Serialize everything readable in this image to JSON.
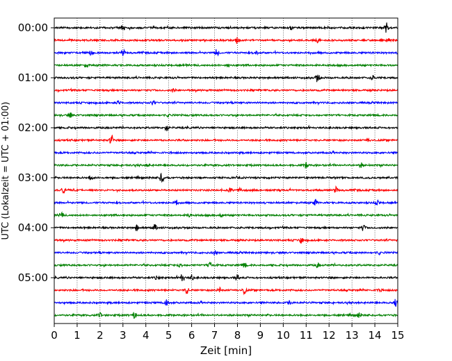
{
  "chart_data": {
    "type": "line",
    "title": "",
    "xlabel": "Zeit  [min]",
    "ylabel": "UTC (Lokalzeit = UTC + 01:00)",
    "xlim": [
      0,
      15
    ],
    "x_ticks": [
      "0",
      "1",
      "2",
      "3",
      "4",
      "5",
      "6",
      "7",
      "8",
      "9",
      "10",
      "11",
      "12",
      "13",
      "14",
      "15"
    ],
    "y_ticks": [
      "00:00",
      "01:00",
      "02:00",
      "03:00",
      "04:00",
      "05:00"
    ],
    "grid": "vertical dotted at each minute",
    "trace_colors_cycle": [
      "#000000",
      "#ff0000",
      "#0000ff",
      "#008000"
    ],
    "trace_interval_minutes": 15,
    "traces": [
      {
        "start": "00:00",
        "color": "#000000",
        "events": [
          {
            "t": 3.0,
            "a": 4
          },
          {
            "t": 10.3,
            "a": 4
          },
          {
            "t": 14.5,
            "a": 7
          }
        ]
      },
      {
        "start": "00:15",
        "color": "#ff0000",
        "events": [
          {
            "t": 8.0,
            "a": 5
          },
          {
            "t": 11.5,
            "a": 3
          },
          {
            "t": 14.6,
            "a": 3
          }
        ]
      },
      {
        "start": "00:30",
        "color": "#0000ff",
        "events": [
          {
            "t": 1.6,
            "a": 3
          },
          {
            "t": 3.0,
            "a": 4
          },
          {
            "t": 7.1,
            "a": 5
          },
          {
            "t": 8.8,
            "a": 3
          }
        ]
      },
      {
        "start": "00:45",
        "color": "#008000",
        "events": [
          {
            "t": 1.4,
            "a": 3
          },
          {
            "t": 7.6,
            "a": 2
          }
        ]
      },
      {
        "start": "01:00",
        "color": "#000000",
        "events": [
          {
            "t": 11.5,
            "a": 6
          },
          {
            "t": 13.9,
            "a": 3
          }
        ]
      },
      {
        "start": "01:15",
        "color": "#ff0000",
        "events": [
          {
            "t": 5.2,
            "a": 2
          }
        ]
      },
      {
        "start": "01:30",
        "color": "#0000ff",
        "events": [
          {
            "t": 2.8,
            "a": 3
          },
          {
            "t": 4.3,
            "a": 3
          }
        ]
      },
      {
        "start": "01:45",
        "color": "#008000",
        "events": [
          {
            "t": 0.7,
            "a": 3
          },
          {
            "t": 5.0,
            "a": 2
          }
        ]
      },
      {
        "start": "02:00",
        "color": "#000000",
        "events": [
          {
            "t": 4.9,
            "a": 4
          }
        ]
      },
      {
        "start": "02:15",
        "color": "#ff0000",
        "events": [
          {
            "t": 2.5,
            "a": 7
          },
          {
            "t": 13.7,
            "a": 2
          }
        ]
      },
      {
        "start": "02:30",
        "color": "#0000ff",
        "events": []
      },
      {
        "start": "02:45",
        "color": "#008000",
        "events": [
          {
            "t": 4.1,
            "a": 2
          },
          {
            "t": 11.0,
            "a": 4
          },
          {
            "t": 13.4,
            "a": 3
          }
        ]
      },
      {
        "start": "03:00",
        "color": "#000000",
        "events": [
          {
            "t": 1.6,
            "a": 3
          },
          {
            "t": 4.7,
            "a": 7
          }
        ]
      },
      {
        "start": "03:15",
        "color": "#ff0000",
        "events": [
          {
            "t": 0.4,
            "a": 5
          },
          {
            "t": 7.7,
            "a": 3
          },
          {
            "t": 8.1,
            "a": 3
          },
          {
            "t": 12.3,
            "a": 4
          }
        ]
      },
      {
        "start": "03:30",
        "color": "#0000ff",
        "events": [
          {
            "t": 5.3,
            "a": 5
          },
          {
            "t": 11.4,
            "a": 4
          },
          {
            "t": 14.1,
            "a": 3
          }
        ]
      },
      {
        "start": "03:45",
        "color": "#008000",
        "events": [
          {
            "t": 0.3,
            "a": 4
          },
          {
            "t": 5.9,
            "a": 3
          },
          {
            "t": 7.3,
            "a": 3
          }
        ]
      },
      {
        "start": "04:00",
        "color": "#000000",
        "events": [
          {
            "t": 3.6,
            "a": 4
          },
          {
            "t": 4.4,
            "a": 4
          },
          {
            "t": 13.5,
            "a": 4
          }
        ]
      },
      {
        "start": "04:15",
        "color": "#ff0000",
        "events": [
          {
            "t": 10.8,
            "a": 4
          }
        ]
      },
      {
        "start": "04:30",
        "color": "#0000ff",
        "events": [
          {
            "t": 7.0,
            "a": 3
          },
          {
            "t": 14.2,
            "a": 2
          }
        ]
      },
      {
        "start": "04:45",
        "color": "#008000",
        "events": [
          {
            "t": 5.5,
            "a": 3
          },
          {
            "t": 6.8,
            "a": 6
          },
          {
            "t": 8.3,
            "a": 4
          },
          {
            "t": 11.5,
            "a": 3
          }
        ]
      },
      {
        "start": "05:00",
        "color": "#000000",
        "events": [
          {
            "t": 4.5,
            "a": 3
          },
          {
            "t": 5.6,
            "a": 6
          },
          {
            "t": 6.0,
            "a": 4
          },
          {
            "t": 8.0,
            "a": 4
          }
        ]
      },
      {
        "start": "05:15",
        "color": "#ff0000",
        "events": [
          {
            "t": 5.8,
            "a": 5
          },
          {
            "t": 7.2,
            "a": 4
          },
          {
            "t": 8.3,
            "a": 5
          },
          {
            "t": 14.2,
            "a": 3
          }
        ]
      },
      {
        "start": "05:30",
        "color": "#0000ff",
        "events": [
          {
            "t": 4.9,
            "a": 5
          },
          {
            "t": 10.3,
            "a": 3
          },
          {
            "t": 14.9,
            "a": 6
          }
        ]
      },
      {
        "start": "05:45",
        "color": "#008000",
        "events": [
          {
            "t": 2.0,
            "a": 3
          },
          {
            "t": 3.5,
            "a": 4
          },
          {
            "t": 13.3,
            "a": 4
          }
        ]
      }
    ]
  }
}
